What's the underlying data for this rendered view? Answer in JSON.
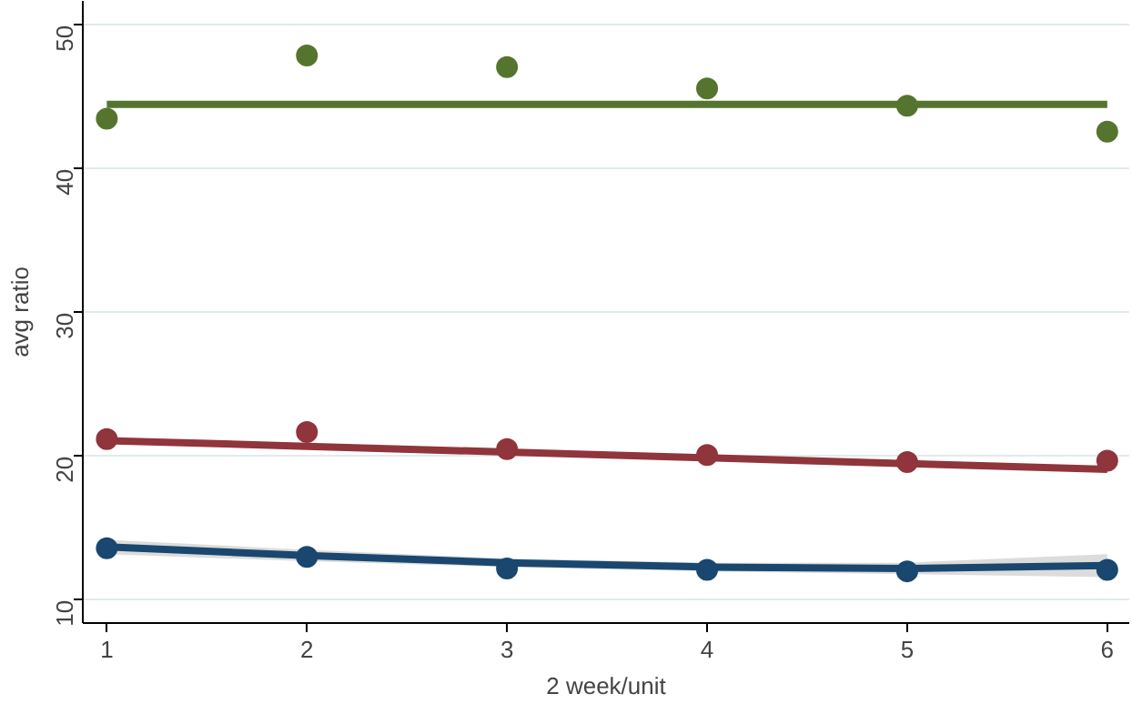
{
  "chart_data": {
    "type": "scatter",
    "xlabel": "2 week/unit",
    "ylabel": "avg ratio",
    "x": [
      1,
      2,
      3,
      4,
      5,
      6
    ],
    "xlim": [
      0.88,
      6.11
    ],
    "ylim": [
      8.4,
      51.7
    ],
    "xticks": [
      1,
      2,
      3,
      4,
      5,
      6
    ],
    "yticks": [
      10,
      20,
      30,
      40,
      50
    ],
    "grid": "y",
    "marker": "circle",
    "series": [
      {
        "type": "line",
        "marker": "none",
        "color": "#55752f",
        "values": [
          44.5,
          44.5,
          44.5,
          44.5,
          44.5,
          44.5
        ]
      },
      {
        "type": "line",
        "marker": "none",
        "color": "#90353b",
        "values": [
          21.1,
          20.7,
          20.3,
          19.9,
          19.5,
          19.1
        ]
      },
      {
        "type": "line",
        "marker": "none",
        "color": "#1a476f",
        "values": [
          13.7,
          13.1,
          12.6,
          12.3,
          12.2,
          12.4
        ],
        "lower": [
          13.2,
          12.7,
          12.3,
          12.0,
          11.8,
          11.6
        ],
        "upper": [
          14.2,
          13.5,
          12.9,
          12.6,
          12.6,
          13.2
        ]
      },
      {
        "color": "#55752f",
        "values": [
          43.5,
          47.9,
          47.1,
          45.6,
          44.4,
          42.6
        ]
      },
      {
        "color": "#90353b",
        "values": [
          21.2,
          21.7,
          20.5,
          20.1,
          19.6,
          19.7
        ]
      },
      {
        "color": "#1a476f",
        "values": [
          13.6,
          13.0,
          12.2,
          12.1,
          12.0,
          12.1
        ]
      }
    ]
  }
}
